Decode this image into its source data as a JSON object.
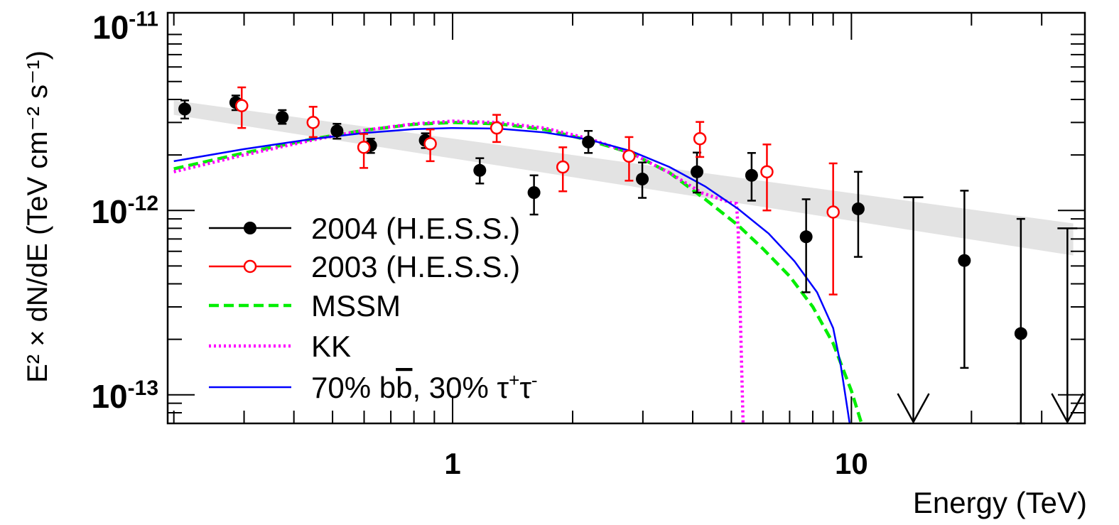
{
  "chart_data": {
    "type": "scatter",
    "xscale": "log",
    "yscale": "log",
    "xlim": [
      0.193,
      38.5
    ],
    "ylim": [
      7e-14,
      1.18e-11
    ],
    "xlabel": "Energy (TeV)",
    "ylabel": "E² × dN/dE (TeV cm⁻² s⁻¹)",
    "x_ticks": [
      {
        "value": 1,
        "label": "1"
      },
      {
        "value": 10,
        "label": "10"
      }
    ],
    "y_ticks": [
      {
        "value": 1e-11,
        "base": "10",
        "exp": "-11"
      },
      {
        "value": 1e-12,
        "base": "10",
        "exp": "-12"
      },
      {
        "value": 1e-13,
        "base": "10",
        "exp": "-13"
      }
    ],
    "band": {
      "name": "power-law fit band",
      "color": "#e3e3e3",
      "upper": [
        [
          0.2,
          3.95e-12
        ],
        [
          36,
          8.5e-13
        ]
      ],
      "lower": [
        [
          0.2,
          3.3e-12
        ],
        [
          36,
          5.7e-13
        ]
      ]
    },
    "series": [
      {
        "name": "2004 (H.E.S.S.)",
        "color": "#000000",
        "marker": "filled-circle",
        "points": [
          {
            "x": 0.213,
            "y": 3.55e-12,
            "lo": 3.15e-12,
            "hi": 3.95e-12
          },
          {
            "x": 0.286,
            "y": 3.85e-12,
            "lo": 3.5e-12,
            "hi": 4.2e-12
          },
          {
            "x": 0.374,
            "y": 3.2e-12,
            "lo": 2.95e-12,
            "hi": 3.5e-12
          },
          {
            "x": 0.513,
            "y": 2.7e-12,
            "lo": 2.45e-12,
            "hi": 2.95e-12
          },
          {
            "x": 0.623,
            "y": 2.25e-12,
            "lo": 2.05e-12,
            "hi": 2.45e-12
          },
          {
            "x": 0.854,
            "y": 2.4e-12,
            "lo": 2.18e-12,
            "hi": 2.62e-12
          },
          {
            "x": 1.17,
            "y": 1.65e-12,
            "lo": 1.4e-12,
            "hi": 1.92e-12
          },
          {
            "x": 1.6,
            "y": 1.25e-12,
            "lo": 9.5e-13,
            "hi": 1.55e-12
          },
          {
            "x": 2.19,
            "y": 2.35e-12,
            "lo": 2.05e-12,
            "hi": 2.7e-12
          },
          {
            "x": 2.99,
            "y": 1.48e-12,
            "lo": 1.17e-12,
            "hi": 1.82e-12
          },
          {
            "x": 4.1,
            "y": 1.62e-12,
            "lo": 1.25e-12,
            "hi": 2.06e-12
          },
          {
            "x": 5.62,
            "y": 1.55e-12,
            "lo": 1.13e-12,
            "hi": 2.05e-12
          },
          {
            "x": 7.7,
            "y": 7.2e-13,
            "lo": 3.6e-13,
            "hi": 1.15e-12
          },
          {
            "x": 10.4,
            "y": 1.02e-12,
            "lo": 5.6e-13,
            "hi": 1.62e-12
          },
          {
            "x": 19.2,
            "y": 5.35e-13,
            "lo": 1.4e-13,
            "hi": 1.28e-12
          },
          {
            "x": 26.6,
            "y": 2.15e-13,
            "lo": 7e-14,
            "hi": 9e-13
          }
        ],
        "upper_limits": [
          {
            "x": 14.3,
            "y": 1.18e-12
          },
          {
            "x": 34.8,
            "y": 8e-13
          }
        ]
      },
      {
        "name": "2003 (H.E.S.S.)",
        "color": "#ff0000",
        "marker": "open-circle",
        "points": [
          {
            "x": 0.296,
            "y": 3.7e-12,
            "lo": 2.8e-12,
            "hi": 4.65e-12
          },
          {
            "x": 0.447,
            "y": 3e-12,
            "lo": 2.5e-12,
            "hi": 3.65e-12
          },
          {
            "x": 0.599,
            "y": 2.2e-12,
            "lo": 1.7e-12,
            "hi": 2.6e-12
          },
          {
            "x": 0.879,
            "y": 2.3e-12,
            "lo": 1.85e-12,
            "hi": 2.75e-12
          },
          {
            "x": 1.29,
            "y": 2.8e-12,
            "lo": 2.35e-12,
            "hi": 3.3e-12
          },
          {
            "x": 1.89,
            "y": 1.72e-12,
            "lo": 1.27e-12,
            "hi": 2.2e-12
          },
          {
            "x": 2.77,
            "y": 1.97e-12,
            "lo": 1.45e-12,
            "hi": 2.5e-12
          },
          {
            "x": 4.17,
            "y": 2.45e-12,
            "lo": 1.95e-12,
            "hi": 3.02e-12
          },
          {
            "x": 6.14,
            "y": 1.62e-12,
            "lo": 1e-12,
            "hi": 2.28e-12
          },
          {
            "x": 9.0,
            "y": 9.8e-13,
            "lo": 3.5e-13,
            "hi": 1.8e-12
          }
        ]
      },
      {
        "name": "MSSM",
        "color": "#00ee00",
        "style": "dashed",
        "line": [
          [
            0.2,
            1.68e-12
          ],
          [
            0.3,
            2.05e-12
          ],
          [
            0.45,
            2.45e-12
          ],
          [
            0.6,
            2.72e-12
          ],
          [
            0.8,
            2.93e-12
          ],
          [
            1.0,
            3e-12
          ],
          [
            1.3,
            2.95e-12
          ],
          [
            1.7,
            2.75e-12
          ],
          [
            2.2,
            2.4e-12
          ],
          [
            2.8,
            2.05e-12
          ],
          [
            3.5,
            1.6e-12
          ],
          [
            4.3,
            1.15e-12
          ],
          [
            5.2,
            8.3e-13
          ],
          [
            6.0,
            6.2e-13
          ],
          [
            7.0,
            4.4e-13
          ],
          [
            8.0,
            3e-13
          ],
          [
            9.0,
            1.9e-13
          ],
          [
            10.0,
            1.05e-13
          ],
          [
            10.6,
            7e-14
          ]
        ]
      },
      {
        "name": "KK",
        "color": "#ff00ff",
        "style": "dotted",
        "line": [
          [
            0.2,
            1.62e-12
          ],
          [
            0.3,
            2e-12
          ],
          [
            0.45,
            2.42e-12
          ],
          [
            0.6,
            2.72e-12
          ],
          [
            0.8,
            2.95e-12
          ],
          [
            1.0,
            3.05e-12
          ],
          [
            1.3,
            3e-12
          ],
          [
            1.7,
            2.8e-12
          ],
          [
            2.2,
            2.45e-12
          ],
          [
            2.8,
            2.05e-12
          ],
          [
            3.5,
            1.6e-12
          ],
          [
            4.2,
            1.25e-12
          ],
          [
            4.7,
            1.15e-12
          ],
          [
            5.0,
            1.1e-12
          ],
          [
            5.15,
            1.09e-12
          ],
          [
            5.2,
            8e-13
          ],
          [
            5.35,
            7e-14
          ]
        ]
      },
      {
        "name": "70% bb̄, 30% τ⁺τ⁻",
        "color": "#0000ff",
        "style": "solid",
        "line": [
          [
            0.2,
            1.85e-12
          ],
          [
            0.3,
            2.15e-12
          ],
          [
            0.45,
            2.45e-12
          ],
          [
            0.6,
            2.63e-12
          ],
          [
            0.8,
            2.76e-12
          ],
          [
            1.0,
            2.8e-12
          ],
          [
            1.3,
            2.78e-12
          ],
          [
            1.7,
            2.65e-12
          ],
          [
            2.2,
            2.42e-12
          ],
          [
            2.8,
            2.1e-12
          ],
          [
            3.5,
            1.72e-12
          ],
          [
            4.3,
            1.35e-12
          ],
          [
            5.2,
            1.02e-12
          ],
          [
            6.2,
            7.5e-13
          ],
          [
            7.2,
            5.3e-13
          ],
          [
            8.2,
            3.6e-13
          ],
          [
            9.0,
            2.3e-13
          ],
          [
            9.4,
            1.45e-13
          ],
          [
            9.9,
            7e-14
          ]
        ]
      }
    ],
    "legend": {
      "position": "bottom-left",
      "entries": [
        {
          "series": 0,
          "label": "2004 (H.E.S.S.)"
        },
        {
          "series": 1,
          "label": "2003 (H.E.S.S.)"
        },
        {
          "series": 2,
          "label": "MSSM"
        },
        {
          "series": 3,
          "label": "KK"
        },
        {
          "series": 4,
          "label": "70% bb̄, 30% τ⁺τ⁻"
        }
      ],
      "kk_label": {
        "b": "b",
        "bbar": "b",
        "sep": ", 30% ",
        "tau": "τ",
        "plus": "+",
        "minus": "-"
      }
    }
  }
}
